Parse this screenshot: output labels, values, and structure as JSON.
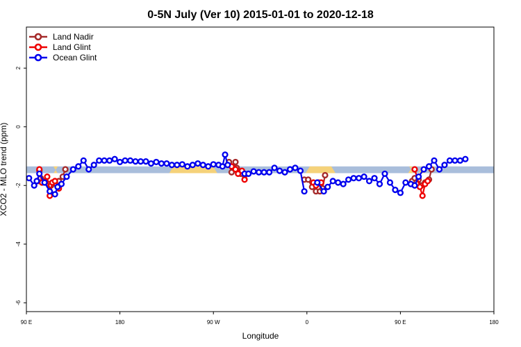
{
  "chart_data": {
    "type": "line",
    "title": "0-5N July (Ver 10)   2015-01-01 to 2020-12-18",
    "xlabel": "Longitude",
    "ylabel": "XCO2 - MLO trend (ppm)",
    "xlim": [
      90,
      450
    ],
    "ylim": [
      -6.3,
      3.4
    ],
    "x_ticks": [
      {
        "value": 90,
        "label": "90 E"
      },
      {
        "value": 162,
        "label": "180"
      },
      {
        "value": 234,
        "label": "90 W"
      },
      {
        "value": 306,
        "label": "0"
      },
      {
        "value": 378,
        "label": "90 E"
      },
      {
        "value": 450,
        "label": "180"
      }
    ],
    "y_ticks": [
      {
        "value": 2,
        "label": "2"
      },
      {
        "value": 0,
        "label": "0"
      },
      {
        "value": -2,
        "label": "-2"
      },
      {
        "value": -4,
        "label": "-4"
      },
      {
        "value": -6,
        "label": "-6"
      }
    ],
    "band": {
      "y_low": -1.58,
      "y_high": -1.35,
      "color": "#a9bedb"
    },
    "highlights": {
      "color": "#f5d27a",
      "ranges": [
        [
          111,
          114
        ],
        [
          200,
          237
        ],
        [
          305,
          328
        ],
        [
          384,
          388
        ],
        [
          392,
          397
        ]
      ]
    },
    "legend_position": "top-left",
    "series": [
      {
        "name": "Land Nadir",
        "color": "#a52a2a",
        "segments": [
          [
            [
              99,
              -1.85
            ],
            [
              100,
              -1.5
            ],
            [
              101,
              -1.75
            ],
            [
              103,
              -1.85
            ],
            [
              105,
              -1.9
            ],
            [
              107,
              -1.95
            ],
            [
              109,
              -2.0
            ],
            [
              111,
              -1.9
            ],
            [
              113,
              -1.95
            ],
            [
              115,
              -1.85
            ],
            [
              118,
              -1.7
            ],
            [
              120,
              -1.45
            ]
          ],
          [
            [
              246,
              -1.2
            ],
            [
              248,
              -1.55
            ],
            [
              251,
              -1.2
            ],
            [
              252,
              -1.4
            ],
            [
              255,
              -1.6
            ],
            [
              258,
              -1.65
            ]
          ],
          [
            [
              304,
              -1.8
            ],
            [
              307,
              -1.8
            ],
            [
              310,
              -2.05
            ],
            [
              313,
              -2.2
            ],
            [
              316,
              -2.2
            ],
            [
              318,
              -2.1
            ],
            [
              320,
              -1.65
            ]
          ],
          [
            [
              387,
              -1.85
            ],
            [
              389,
              -1.75
            ],
            [
              392,
              -1.8
            ],
            [
              394,
              -2.0
            ],
            [
              397,
              -1.9
            ],
            [
              400,
              -1.8
            ],
            [
              402,
              -1.45
            ]
          ]
        ]
      },
      {
        "name": "Land Glint",
        "color": "#ee0000",
        "segments": [
          [
            [
              100,
              -1.45
            ],
            [
              102,
              -1.9
            ],
            [
              106,
              -1.7
            ],
            [
              108,
              -2.35
            ],
            [
              110,
              -1.9
            ],
            [
              112,
              -1.85
            ],
            [
              115,
              -2.1
            ]
          ],
          [
            [
              248,
              -1.35
            ],
            [
              251,
              -1.45
            ],
            [
              253,
              -1.6
            ],
            [
              256,
              -1.5
            ],
            [
              258,
              -1.8
            ]
          ],
          [
            [
              311,
              -1.9
            ],
            [
              313,
              -2.0
            ],
            [
              315,
              -1.9
            ],
            [
              317,
              -1.9
            ]
          ],
          [
            [
              389,
              -1.45
            ],
            [
              393,
              -2.05
            ],
            [
              395,
              -2.35
            ],
            [
              397,
              -1.95
            ],
            [
              399,
              -1.85
            ]
          ]
        ]
      },
      {
        "name": "Ocean Glint",
        "color": "#0000ee",
        "segments": [
          [
            [
              92,
              -1.75
            ],
            [
              96,
              -2.0
            ],
            [
              98,
              -1.85
            ],
            [
              100,
              -1.6
            ],
            [
              104,
              -1.9
            ],
            [
              108,
              -2.2
            ],
            [
              112,
              -2.3
            ],
            [
              114,
              -2.05
            ],
            [
              117,
              -1.95
            ],
            [
              121,
              -1.7
            ],
            [
              126,
              -1.45
            ],
            [
              130,
              -1.35
            ],
            [
              134,
              -1.15
            ],
            [
              138,
              -1.45
            ],
            [
              142,
              -1.3
            ],
            [
              146,
              -1.15
            ],
            [
              150,
              -1.15
            ],
            [
              154,
              -1.15
            ],
            [
              158,
              -1.1
            ],
            [
              162,
              -1.2
            ],
            [
              166,
              -1.15
            ],
            [
              170,
              -1.15
            ],
            [
              174,
              -1.18
            ],
            [
              178,
              -1.18
            ],
            [
              182,
              -1.18
            ],
            [
              186,
              -1.25
            ],
            [
              190,
              -1.2
            ],
            [
              194,
              -1.25
            ],
            [
              198,
              -1.25
            ],
            [
              202,
              -1.3
            ],
            [
              206,
              -1.3
            ],
            [
              210,
              -1.28
            ],
            [
              214,
              -1.35
            ],
            [
              218,
              -1.3
            ],
            [
              222,
              -1.25
            ],
            [
              226,
              -1.3
            ],
            [
              230,
              -1.35
            ],
            [
              234,
              -1.28
            ],
            [
              238,
              -1.3
            ],
            [
              241,
              -1.35
            ],
            [
              243,
              -0.95
            ],
            [
              245,
              -1.3
            ]
          ],
          [
            [
              258,
              -1.6
            ],
            [
              261,
              -1.6
            ],
            [
              265,
              -1.52
            ],
            [
              269,
              -1.55
            ],
            [
              273,
              -1.55
            ],
            [
              277,
              -1.55
            ],
            [
              281,
              -1.4
            ],
            [
              285,
              -1.5
            ],
            [
              289,
              -1.55
            ],
            [
              293,
              -1.45
            ],
            [
              297,
              -1.4
            ],
            [
              301,
              -1.5
            ],
            [
              304,
              -2.2
            ]
          ],
          [
            [
              314,
              -1.9
            ],
            [
              319,
              -2.2
            ],
            [
              322,
              -2.05
            ],
            [
              326,
              -1.85
            ],
            [
              330,
              -1.9
            ],
            [
              334,
              -1.95
            ],
            [
              338,
              -1.8
            ],
            [
              342,
              -1.75
            ],
            [
              346,
              -1.75
            ],
            [
              350,
              -1.7
            ],
            [
              354,
              -1.85
            ],
            [
              358,
              -1.75
            ],
            [
              362,
              -1.95
            ],
            [
              366,
              -1.6
            ],
            [
              370,
              -1.9
            ],
            [
              374,
              -2.15
            ],
            [
              378,
              -2.25
            ],
            [
              382,
              -1.9
            ],
            [
              386,
              -1.95
            ],
            [
              389,
              -2.0
            ],
            [
              392,
              -1.7
            ],
            [
              396,
              -1.45
            ],
            [
              400,
              -1.35
            ],
            [
              404,
              -1.15
            ],
            [
              408,
              -1.45
            ],
            [
              412,
              -1.3
            ],
            [
              416,
              -1.15
            ],
            [
              420,
              -1.15
            ],
            [
              424,
              -1.15
            ],
            [
              428,
              -1.1
            ]
          ]
        ]
      }
    ]
  }
}
